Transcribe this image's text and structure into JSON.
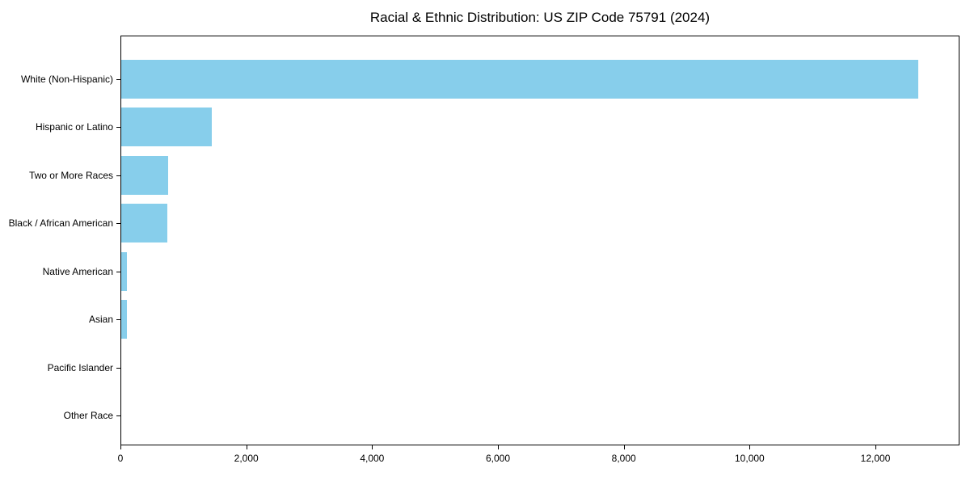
{
  "chart_data": {
    "type": "bar",
    "orientation": "horizontal",
    "title": "Racial & Ethnic Distribution: US ZIP Code 75791 (2024)",
    "categories": [
      "White (Non-Hispanic)",
      "Hispanic or Latino",
      "Two or More Races",
      "Black / African American",
      "Native American",
      "Asian",
      "Pacific Islander",
      "Other Race"
    ],
    "values": [
      12670,
      1440,
      745,
      735,
      95,
      90,
      0,
      0
    ],
    "xlabel": "",
    "ylabel": "",
    "xlim": [
      0,
      13310
    ],
    "x_ticks": [
      0,
      2000,
      4000,
      6000,
      8000,
      10000,
      12000
    ],
    "x_tick_labels": [
      "0",
      "2,000",
      "4,000",
      "6,000",
      "8,000",
      "10,000",
      "12,000"
    ],
    "bar_color": "#87CEEB",
    "axis_color": "#000000",
    "text_color": "#000000",
    "background": "#FFFFFF",
    "grid": false,
    "legend": "none"
  }
}
